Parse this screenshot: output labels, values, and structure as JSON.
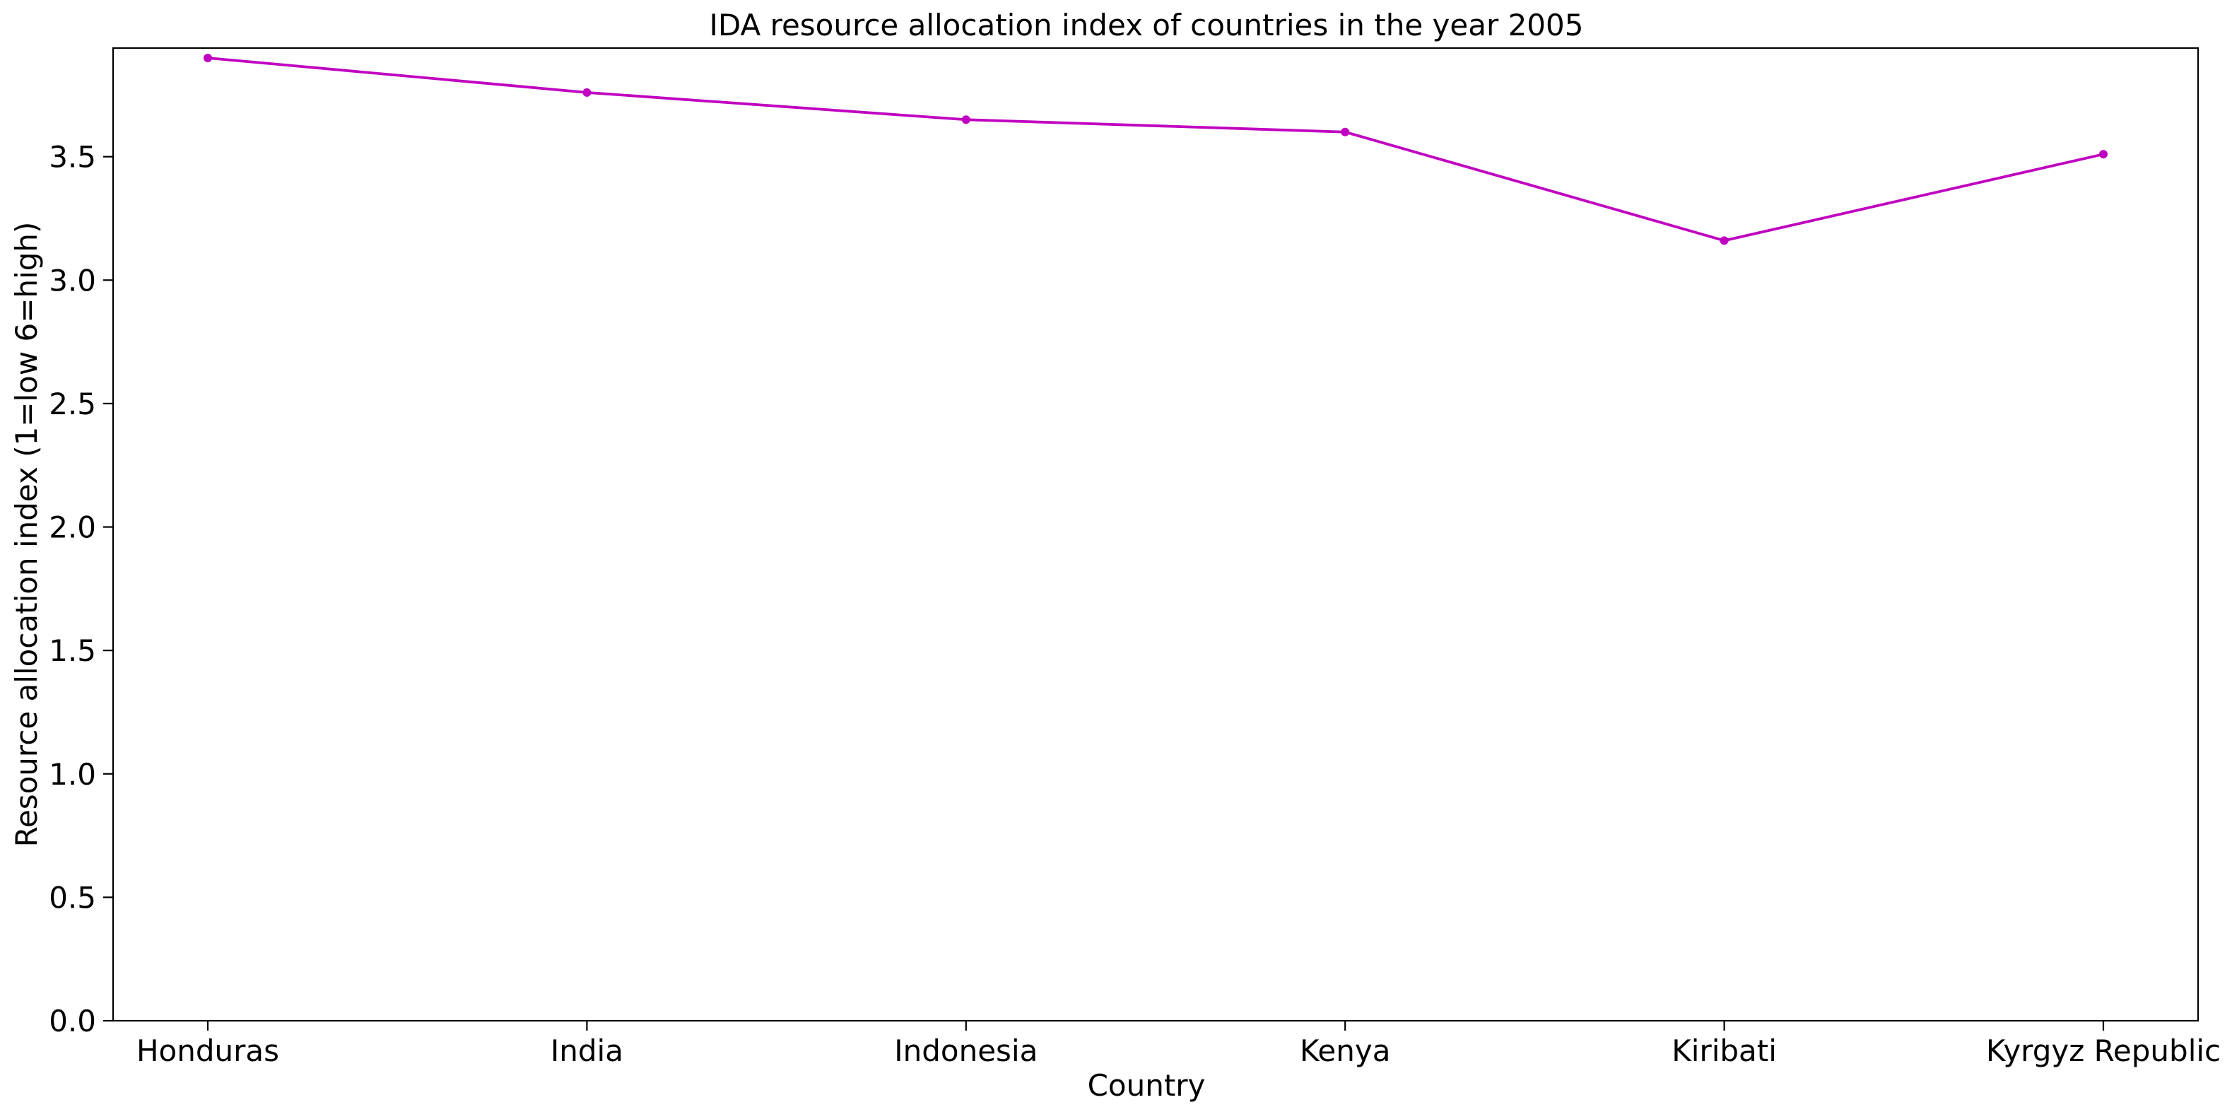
{
  "chart_data": {
    "type": "line",
    "title": "IDA resource allocation index of countries in the year 2005",
    "xlabel": "Country",
    "ylabel": "Resource allocation index (1=low 6=high)",
    "categories": [
      "Honduras",
      "India",
      "Indonesia",
      "Kenya",
      "Kiribati",
      "Kyrgyz Republic"
    ],
    "series": [
      {
        "values": [
          3.9,
          3.76,
          3.65,
          3.6,
          3.16,
          3.51
        ],
        "color": "#c000c0",
        "marker": "circle"
      }
    ],
    "ylim": [
      0,
      3.94
    ],
    "yticks": [
      "0.0",
      "0.5",
      "1.0",
      "1.5",
      "2.0",
      "2.5",
      "3.0",
      "3.5"
    ],
    "grid": false,
    "legend": "none"
  }
}
